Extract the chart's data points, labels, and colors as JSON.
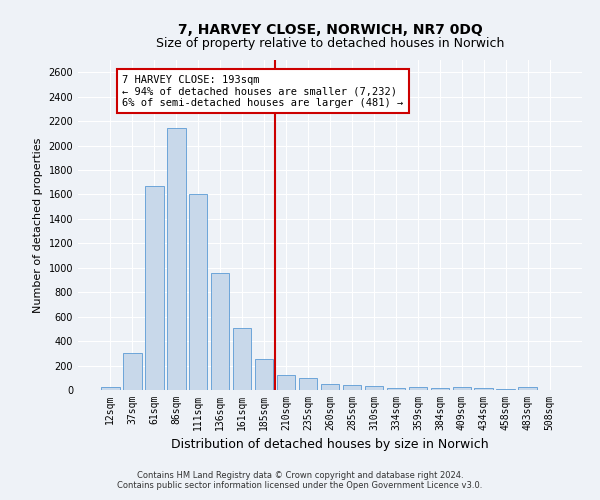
{
  "title": "7, HARVEY CLOSE, NORWICH, NR7 0DQ",
  "subtitle": "Size of property relative to detached houses in Norwich",
  "xlabel": "Distribution of detached houses by size in Norwich",
  "ylabel": "Number of detached properties",
  "footer_line1": "Contains HM Land Registry data © Crown copyright and database right 2024.",
  "footer_line2": "Contains public sector information licensed under the Open Government Licence v3.0.",
  "bar_labels": [
    "12sqm",
    "37sqm",
    "61sqm",
    "86sqm",
    "111sqm",
    "136sqm",
    "161sqm",
    "185sqm",
    "210sqm",
    "235sqm",
    "260sqm",
    "285sqm",
    "310sqm",
    "334sqm",
    "359sqm",
    "384sqm",
    "409sqm",
    "434sqm",
    "458sqm",
    "483sqm",
    "508sqm"
  ],
  "bar_values": [
    25,
    300,
    1670,
    2140,
    1600,
    960,
    505,
    250,
    120,
    100,
    50,
    40,
    35,
    20,
    25,
    20,
    25,
    20,
    5,
    25,
    0
  ],
  "bar_color": "#c8d8ea",
  "bar_edgecolor": "#5b9bd5",
  "vline_x_index": 7.5,
  "vline_color": "#cc0000",
  "annotation_text": "7 HARVEY CLOSE: 193sqm\n← 94% of detached houses are smaller (7,232)\n6% of semi-detached houses are larger (481) →",
  "annotation_box_color": "white",
  "annotation_box_edgecolor": "#cc0000",
  "ylim": [
    0,
    2700
  ],
  "yticks": [
    0,
    200,
    400,
    600,
    800,
    1000,
    1200,
    1400,
    1600,
    1800,
    2000,
    2200,
    2400,
    2600
  ],
  "bg_color": "#eef2f7",
  "grid_color": "white",
  "title_fontsize": 10,
  "subtitle_fontsize": 9,
  "ylabel_fontsize": 8,
  "xlabel_fontsize": 9,
  "tick_fontsize": 7,
  "footer_fontsize": 6,
  "ann_fontsize": 7.5
}
